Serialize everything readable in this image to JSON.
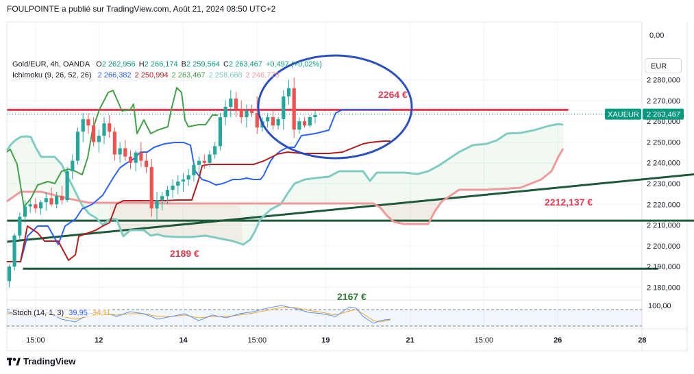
{
  "header": {
    "text": "FOULPOINTE a publié sur TradingView.com, Août 21, 2024 08:50 UTC+2"
  },
  "legend": {
    "symbol": "Gold/EUR, 4h, OANDA",
    "o_label": "O",
    "o": "2 262,956",
    "h_label": "H",
    "h": "2 266,174",
    "b_label": "B",
    "b": "2 259,564",
    "c_label": "C",
    "c": "2 263,467",
    "change": "+0,497 (+0,02%)"
  },
  "ichimoku": {
    "name": "Ichimoku (9, 26, 52, 26)",
    "values": [
      "2 266,382",
      "2 250,994",
      "2 263,467",
      "2 258,688",
      "2 246,778"
    ],
    "colors": [
      "#2962ff",
      "#b71c1c",
      "#43a047",
      "#80cbc4",
      "#ef9a9a"
    ]
  },
  "stoch": {
    "name": "Stoch (14, 1, 3)",
    "k": "39,95",
    "d": "34,11"
  },
  "currency": "EUR",
  "price_tag": {
    "symbol": "XAUEUR",
    "price": "2 263,467"
  },
  "footer": {
    "brand": "TradingView"
  },
  "colors": {
    "up": "#26a69a",
    "down": "#ef5350",
    "red_line": "#e53950",
    "green_line": "#1e5a3a",
    "ellipse": "#2a4fbf",
    "stoch_k": "#5b8def",
    "stoch_d": "#f5a623"
  },
  "chart_data": {
    "type": "candlestick",
    "price_axis": {
      "ticks": [
        "0,00",
        "2 280,000",
        "2 270,000",
        "2 260,000",
        "2 250,000",
        "2 240,000",
        "2 230,000",
        "2 220,000",
        "2 210,000",
        "2 200,000",
        "2 190,000",
        "2 180,000"
      ],
      "tick_values": [
        2280,
        2270,
        2260,
        2250,
        2240,
        2230,
        2220,
        2210,
        2200,
        2190,
        2180
      ],
      "zero_label": "0,00",
      "range": [
        2176,
        2286
      ]
    },
    "stoch_axis": {
      "label": "100,00"
    },
    "time_axis": {
      "labels": [
        "15:00",
        "12",
        "14",
        "15:00",
        "19",
        "21",
        "15:00",
        "26",
        "28"
      ],
      "bold": [
        "12",
        "14",
        "19",
        "21",
        "26",
        "28"
      ],
      "label_bars": [
        5,
        17,
        33,
        47,
        60,
        76,
        90,
        104,
        120
      ]
    },
    "last_bar": 78,
    "candles": [
      [
        2183,
        2191,
        2180,
        2190
      ],
      [
        2190,
        2206,
        2188,
        2205
      ],
      [
        2205,
        2216,
        2203,
        2214
      ],
      [
        2214,
        2222,
        2211,
        2219
      ],
      [
        2219,
        2222,
        2216,
        2220
      ],
      [
        2220,
        2223,
        2216,
        2218
      ],
      [
        2218,
        2222,
        2215,
        2221
      ],
      [
        2221,
        2226,
        2217,
        2223
      ],
      [
        2223,
        2228,
        2219,
        2220
      ],
      [
        2220,
        2226,
        2218,
        2224
      ],
      [
        2224,
        2229,
        2220,
        2222
      ],
      [
        2222,
        2238,
        2221,
        2236
      ],
      [
        2236,
        2244,
        2232,
        2241
      ],
      [
        2241,
        2257,
        2239,
        2255
      ],
      [
        2255,
        2264,
        2250,
        2261
      ],
      [
        2261,
        2264,
        2254,
        2258
      ],
      [
        2258,
        2262,
        2248,
        2250
      ],
      [
        2250,
        2256,
        2245,
        2253
      ],
      [
        2253,
        2262,
        2249,
        2259
      ],
      [
        2259,
        2263,
        2252,
        2255
      ],
      [
        2255,
        2257,
        2241,
        2244
      ],
      [
        2244,
        2250,
        2240,
        2247
      ],
      [
        2247,
        2251,
        2241,
        2243
      ],
      [
        2243,
        2246,
        2237,
        2240
      ],
      [
        2240,
        2246,
        2236,
        2245
      ],
      [
        2245,
        2250,
        2238,
        2241
      ],
      [
        2241,
        2245,
        2235,
        2238
      ],
      [
        2238,
        2242,
        2214,
        2218
      ],
      [
        2218,
        2226,
        2212,
        2222
      ],
      [
        2222,
        2226,
        2217,
        2224
      ],
      [
        2224,
        2229,
        2220,
        2227
      ],
      [
        2227,
        2232,
        2223,
        2229
      ],
      [
        2229,
        2234,
        2225,
        2231
      ],
      [
        2231,
        2235,
        2226,
        2232
      ],
      [
        2232,
        2237,
        2229,
        2234
      ],
      [
        2234,
        2241,
        2231,
        2239
      ],
      [
        2239,
        2243,
        2235,
        2241
      ],
      [
        2241,
        2244,
        2237,
        2240
      ],
      [
        2240,
        2246,
        2238,
        2244
      ],
      [
        2244,
        2250,
        2242,
        2248
      ],
      [
        2248,
        2264,
        2246,
        2262
      ],
      [
        2262,
        2270,
        2258,
        2267
      ],
      [
        2267,
        2275,
        2262,
        2271
      ],
      [
        2271,
        2274,
        2262,
        2266
      ],
      [
        2266,
        2270,
        2259,
        2262
      ],
      [
        2262,
        2268,
        2257,
        2265
      ],
      [
        2265,
        2268,
        2262,
        2264
      ],
      [
        2264,
        2272,
        2254,
        2257
      ],
      [
        2257,
        2262,
        2255,
        2260
      ],
      [
        2260,
        2264,
        2257,
        2262
      ],
      [
        2262,
        2266,
        2256,
        2258
      ],
      [
        2258,
        2262,
        2256,
        2261
      ],
      [
        2261,
        2275,
        2256,
        2272
      ],
      [
        2272,
        2280,
        2268,
        2276
      ],
      [
        2276,
        2281,
        2252,
        2256
      ],
      [
        2256,
        2262,
        2254,
        2260
      ],
      [
        2260,
        2262,
        2257,
        2258
      ],
      [
        2258,
        2263,
        2257,
        2262
      ],
      [
        2262,
        2266,
        2259,
        2263
      ]
    ],
    "annotations": [
      {
        "text": "2264 €",
        "value": 2264,
        "color": "#e53950"
      },
      {
        "text": "2212,137 €",
        "value": 2212.137,
        "color": "#e53950"
      },
      {
        "text": "2189 €",
        "value": 2189,
        "color": "#e53950"
      },
      {
        "text": "2167 €",
        "value": 2167,
        "color": "#2e7d32"
      }
    ],
    "horizontal_lines": [
      {
        "value": 2265.5,
        "color": "#e53950",
        "from_bar": 0,
        "to_bar": 106
      },
      {
        "value": 2212.137,
        "color": "#1e5a3a",
        "from_bar": 0,
        "to_bar": 136
      },
      {
        "value": 2189,
        "color": "#1e5a3a",
        "from_bar": 3,
        "to_bar": 123
      }
    ],
    "trend_line": {
      "from": [
        0,
        2202
      ],
      "to": [
        136,
        2236
      ],
      "color": "#1e5a3a"
    }
  }
}
